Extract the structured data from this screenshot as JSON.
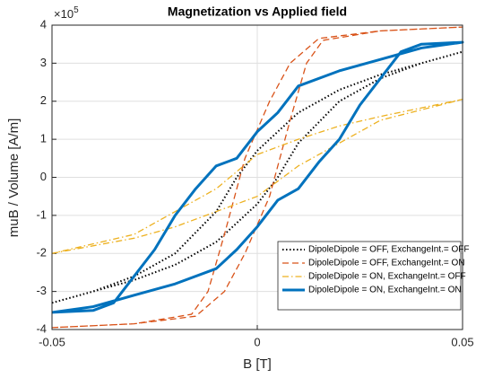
{
  "chart_data": {
    "type": "line",
    "title": "Magnetization vs Applied field",
    "xlabel": "B [T]",
    "ylabel": "muB / Volume [A/m]",
    "y_exponent_base": "×10",
    "y_exponent": "5",
    "xlim": [
      -0.05,
      0.05
    ],
    "xticks": [
      -0.05,
      0,
      0.05
    ],
    "ylim": [
      -4,
      4
    ],
    "yticks": [
      -4,
      -3,
      -2,
      -1,
      0,
      1,
      2,
      3,
      4
    ],
    "grid": true,
    "legend": "lower right",
    "series": [
      {
        "name": "DipoleDipole = OFF, ExchangeInt.= OFF",
        "color": "#000000",
        "line_style": ":",
        "line_width": 2,
        "x": [
          -0.05,
          -0.04,
          -0.03,
          -0.02,
          -0.01,
          0,
          0.005,
          0.01,
          0.02,
          0.03,
          0.04,
          0.05,
          0.04,
          0.03,
          0.02,
          0.01,
          0,
          -0.005,
          -0.01,
          -0.02,
          -0.03,
          -0.04,
          -0.05
        ],
        "values": [
          -3.3,
          -3.0,
          -2.7,
          -2.3,
          -1.7,
          -0.7,
          0.0,
          0.9,
          2.0,
          2.6,
          3.0,
          3.3,
          3.0,
          2.7,
          2.3,
          1.7,
          0.7,
          0.0,
          -0.9,
          -2.0,
          -2.6,
          -3.0,
          -3.3
        ]
      },
      {
        "name": "DipoleDipole = OFF, ExchangeInt.= ON",
        "color": "#D95319",
        "line_style": "--",
        "line_width": 1.3,
        "x": [
          -0.05,
          -0.03,
          -0.015,
          -0.008,
          -0.003,
          0.003,
          0.008,
          0.012,
          0.016,
          0.03,
          0.05,
          0.03,
          0.015,
          0.008,
          0.003,
          -0.003,
          -0.008,
          -0.012,
          -0.016,
          -0.03,
          -0.05
        ],
        "values": [
          -3.95,
          -3.85,
          -3.65,
          -3.0,
          -2.0,
          -0.5,
          1.5,
          3.0,
          3.6,
          3.85,
          3.95,
          3.85,
          3.65,
          3.0,
          2.0,
          0.5,
          -1.5,
          -3.0,
          -3.6,
          -3.85,
          -3.95
        ]
      },
      {
        "name": "DipoleDipole = ON, ExchangeInt.= OFF",
        "color": "#EDB120",
        "line_style": "-.",
        "line_width": 1.3,
        "x": [
          -0.05,
          -0.03,
          -0.02,
          -0.01,
          0,
          0.01,
          0.02,
          0.03,
          0.05,
          0.03,
          0.02,
          0.01,
          0,
          -0.01,
          -0.02,
          -0.03,
          -0.05
        ],
        "values": [
          -2.0,
          -1.6,
          -1.3,
          -0.9,
          -0.5,
          0.3,
          0.9,
          1.5,
          2.05,
          1.6,
          1.35,
          1.0,
          0.6,
          -0.3,
          -0.9,
          -1.5,
          -2.0
        ]
      },
      {
        "name": "DipoleDipole = ON, ExchangeInt.= ON",
        "color": "#0072BD",
        "line_style": "-",
        "line_width": 3,
        "x": [
          -0.05,
          -0.04,
          -0.03,
          -0.02,
          -0.01,
          -0.005,
          0,
          0.005,
          0.01,
          0.015,
          0.02,
          0.025,
          0.03,
          0.035,
          0.04,
          0.05,
          0.04,
          0.03,
          0.02,
          0.01,
          0.005,
          0,
          -0.005,
          -0.01,
          -0.015,
          -0.02,
          -0.025,
          -0.03,
          -0.035,
          -0.04,
          -0.05
        ],
        "values": [
          -3.55,
          -3.4,
          -3.1,
          -2.8,
          -2.4,
          -1.9,
          -1.3,
          -0.6,
          -0.3,
          0.4,
          1.0,
          1.9,
          2.6,
          3.3,
          3.5,
          3.55,
          3.4,
          3.1,
          2.8,
          2.4,
          1.7,
          1.2,
          0.5,
          0.3,
          -0.3,
          -1.0,
          -1.9,
          -2.6,
          -3.3,
          -3.5,
          -3.55
        ]
      }
    ]
  }
}
